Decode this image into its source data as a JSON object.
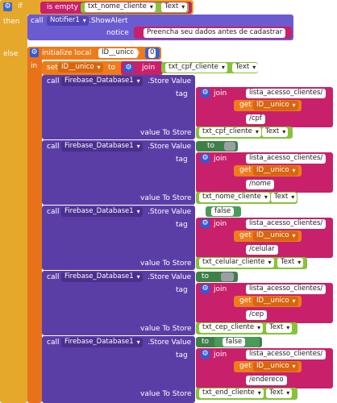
{
  "if_block": {
    "if_label": "if",
    "is_empty_label": "is empty",
    "then_label": "then",
    "else_label": "else"
  },
  "condition": {
    "textbox": "txt_nome_cliente",
    "prop": "Text"
  },
  "notifier": {
    "call_label": "call",
    "component": "Notifier1",
    "method": ".ShowAlert",
    "notice_label": "notice",
    "notice_text": "Preencha seu dados antes de cadastrar"
  },
  "init_local": {
    "label": "initialize local",
    "var_name": "ID__unico",
    "to_label": "to",
    "value": "0",
    "in_label": "in"
  },
  "set_block": {
    "set_label": "set",
    "var": "ID__unico",
    "to_label": "to",
    "join_label": "join",
    "textbox": "txt_cpf_cliente",
    "prop": "Text"
  },
  "calls": [
    {
      "call_label": "call",
      "component": "Firebase_Database1",
      "method": ".Store Value",
      "tag_label": "tag",
      "join_label": "join",
      "path": "lista_acesso_clientes/",
      "get_label": "get",
      "get_var": "ID__unico",
      "suffix": "/cpf",
      "value_label": "value To Store",
      "value_textbox": "txt_cpf_cliente",
      "value_prop": "Text",
      "to_label": "",
      "literal": ""
    },
    {
      "call_label": "call",
      "component": "Firebase_Database1",
      "method": ".Store Value",
      "tag_label": "tag",
      "join_label": "join",
      "path": "lista_acesso_clientes/",
      "get_label": "get",
      "get_var": "ID__unico",
      "suffix": "/nome",
      "value_label": "value To Store",
      "value_textbox": "txt_nome_cliente",
      "value_prop": "Text",
      "to_label": "to",
      "literal": ""
    },
    {
      "call_label": "call",
      "component": "Firebase_Database1",
      "method": ".Store Value",
      "tag_label": "tag",
      "join_label": "join",
      "path": "lista_acesso_clientes/",
      "get_label": "get",
      "get_var": "ID__unico",
      "suffix": "/celular",
      "value_label": "value To Store",
      "value_textbox": "txt_celular_cliente",
      "value_prop": "Text",
      "to_label": "to",
      "literal": "false"
    },
    {
      "call_label": "call",
      "component": "Firebase_Database1",
      "method": ".Store Value",
      "tag_label": "tag",
      "join_label": "join",
      "path": "lista_acesso_clientes/",
      "get_label": "get",
      "get_var": "ID__unico",
      "suffix": "/cep",
      "value_label": "value To Store",
      "value_textbox": "txt_cep_cliente",
      "value_prop": "Text",
      "to_label": "to",
      "literal": ""
    },
    {
      "call_label": "call",
      "component": "Firebase_Database1",
      "method": ".Store Value",
      "tag_label": "tag",
      "join_label": "join",
      "path": "lista_acesso_clientes/",
      "get_label": "get",
      "get_var": "ID__unico",
      "suffix": "/endereco",
      "value_label": "value To Store",
      "value_textbox": "txt_end_cliente",
      "value_prop": "Text",
      "to_label": "to",
      "literal": "false"
    }
  ],
  "colors": {
    "control": "#e6a82a",
    "notifier": "#6a5cd0",
    "local_var": "#ee7c1a",
    "text_join": "#c8206a",
    "component_text": "#88c23a",
    "firebase": "#5a3ea6",
    "number": "#3f5fc8",
    "logic": "#4a9a5a"
  }
}
